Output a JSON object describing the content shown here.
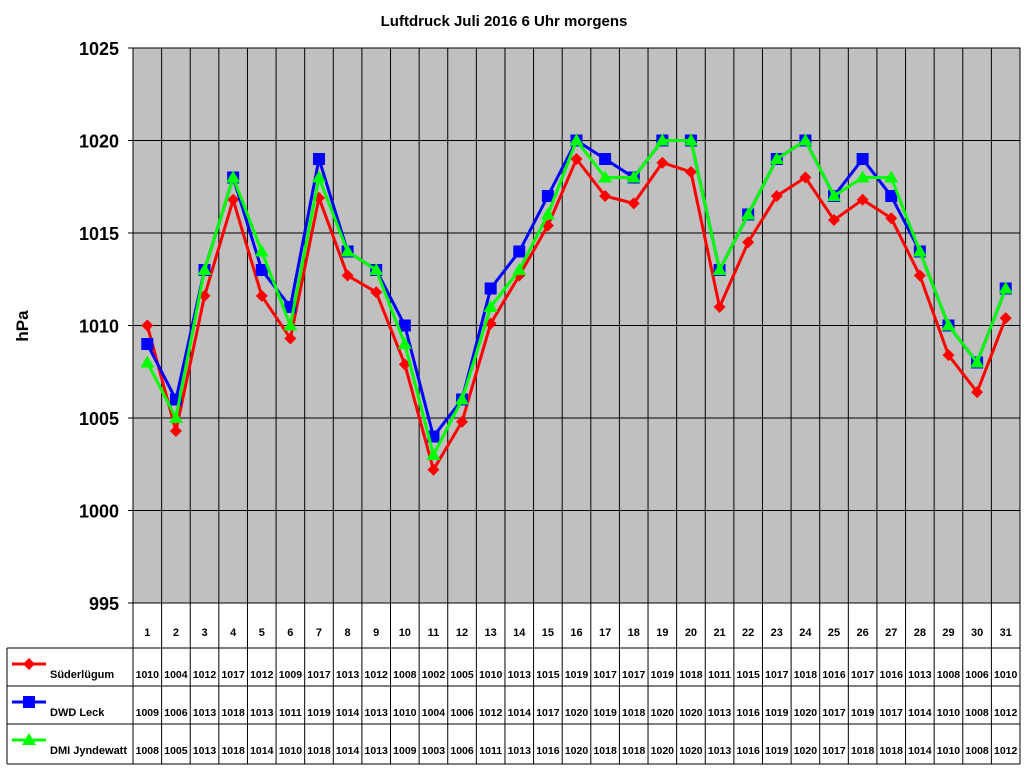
{
  "chart_data": {
    "type": "line",
    "title": "Luftdruck Juli 2016 6 Uhr morgens",
    "ylabel": "hPa",
    "xlabel": "",
    "ylim": [
      995,
      1025
    ],
    "yticks": [
      "995",
      "1000",
      "1005",
      "1010",
      "1015",
      "1020",
      "1025"
    ],
    "grid": true,
    "categories": [
      "1",
      "2",
      "3",
      "4",
      "5",
      "6",
      "7",
      "8",
      "9",
      "10",
      "11",
      "12",
      "13",
      "14",
      "15",
      "16",
      "17",
      "18",
      "19",
      "20",
      "21",
      "22",
      "23",
      "24",
      "25",
      "26",
      "27",
      "28",
      "29",
      "30",
      "31"
    ],
    "series": [
      {
        "name": "Süderlügum",
        "color": "#ff0000",
        "marker": "diamond",
        "values": [
          1010.0,
          1004.3,
          1011.6,
          1016.8,
          1011.6,
          1009.3,
          1016.9,
          1012.7,
          1011.8,
          1007.9,
          1002.2,
          1004.8,
          1010.1,
          1012.7,
          1015.4,
          1019.0,
          1017.0,
          1016.6,
          1018.8,
          1018.3,
          1011.0,
          1014.5,
          1017.0,
          1018.0,
          1015.7,
          1016.8,
          1015.8,
          1012.7,
          1008.4,
          1006.4,
          1010.4
        ],
        "table": [
          "1010",
          "1004",
          "1012",
          "1017",
          "1012",
          "1009",
          "1017",
          "1013",
          "1012",
          "1008",
          "1002",
          "1005",
          "1010",
          "1013",
          "1015",
          "1019",
          "1017",
          "1017",
          "1019",
          "1018",
          "1011",
          "1015",
          "1017",
          "1018",
          "1016",
          "1017",
          "1016",
          "1013",
          "1008",
          "1006",
          "1010"
        ]
      },
      {
        "name": "DWD Leck",
        "color": "#0000ff",
        "marker": "square",
        "values": [
          1009,
          1006,
          1013,
          1018,
          1013,
          1011,
          1019,
          1014,
          1013,
          1010,
          1004,
          1006,
          1012,
          1014,
          1017,
          1020,
          1019,
          1018,
          1020,
          1020,
          1013,
          1016,
          1019,
          1020,
          1017,
          1019,
          1017,
          1014,
          1010,
          1008,
          1012
        ],
        "table": [
          "1009",
          "1006",
          "1013",
          "1018",
          "1013",
          "1011",
          "1019",
          "1014",
          "1013",
          "1010",
          "1004",
          "1006",
          "1012",
          "1014",
          "1017",
          "1020",
          "1019",
          "1018",
          "1020",
          "1020",
          "1013",
          "1016",
          "1019",
          "1020",
          "1017",
          "1019",
          "1017",
          "1014",
          "1010",
          "1008",
          "1012"
        ]
      },
      {
        "name": "DMI Jyndewatt",
        "color": "#00ff00",
        "marker": "triangle",
        "values": [
          1008,
          1005,
          1013,
          1018,
          1014,
          1010,
          1018,
          1014,
          1013,
          1009,
          1003,
          1006,
          1011,
          1013,
          1016,
          1020,
          1018,
          1018,
          1020,
          1020,
          1013,
          1016,
          1019,
          1020,
          1017,
          1018,
          1018,
          1014,
          1010,
          1008,
          1012
        ],
        "table": [
          "1008",
          "1005",
          "1013",
          "1018",
          "1014",
          "1010",
          "1018",
          "1014",
          "1013",
          "1009",
          "1003",
          "1006",
          "1011",
          "1013",
          "1016",
          "1020",
          "1018",
          "1018",
          "1020",
          "1020",
          "1013",
          "1016",
          "1019",
          "1020",
          "1017",
          "1018",
          "1018",
          "1014",
          "1010",
          "1008",
          "1012"
        ]
      }
    ]
  }
}
